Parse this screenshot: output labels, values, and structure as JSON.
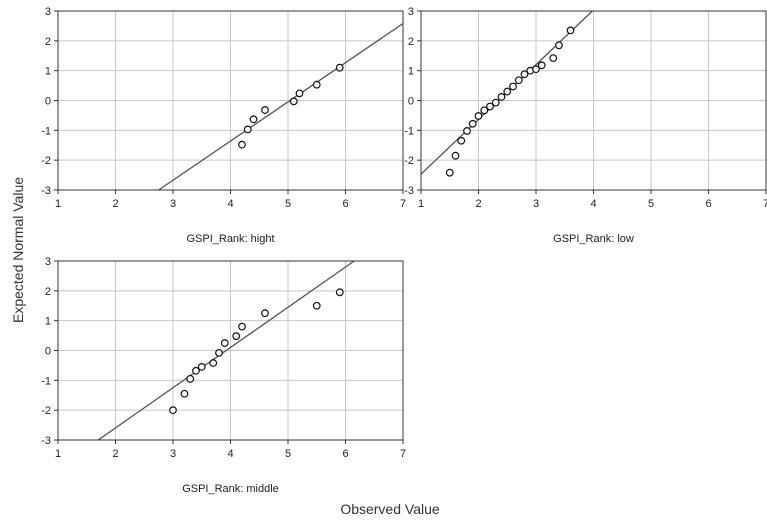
{
  "chart_data": {
    "type": "scatter",
    "ylabel": "Expected Normal Value",
    "xlabel": "Observed Value",
    "xlim": [
      1,
      7
    ],
    "ylim": [
      -3,
      3
    ],
    "xticks": [
      1,
      2,
      3,
      4,
      5,
      6,
      7
    ],
    "yticks": [
      3,
      2,
      1,
      0,
      -1,
      -2,
      -3
    ],
    "grid": true,
    "panels": [
      {
        "label": "GSPI_Rank: hight",
        "points": [
          {
            "x": 4.2,
            "y": -1.48
          },
          {
            "x": 4.3,
            "y": -0.97
          },
          {
            "x": 4.4,
            "y": -0.63
          },
          {
            "x": 4.6,
            "y": -0.32
          },
          {
            "x": 5.1,
            "y": -0.03
          },
          {
            "x": 5.2,
            "y": 0.24
          },
          {
            "x": 5.5,
            "y": 0.53
          },
          {
            "x": 5.9,
            "y": 1.1
          }
        ],
        "fit_line": [
          {
            "x": 2.75,
            "y": -3
          },
          {
            "x": 7,
            "y": 2.58
          }
        ]
      },
      {
        "label": "GSPI_Rank: low",
        "points": [
          {
            "x": 1.5,
            "y": -2.42
          },
          {
            "x": 1.6,
            "y": -1.85
          },
          {
            "x": 1.7,
            "y": -1.35
          },
          {
            "x": 1.8,
            "y": -1.02
          },
          {
            "x": 1.9,
            "y": -0.78
          },
          {
            "x": 2.0,
            "y": -0.52
          },
          {
            "x": 2.1,
            "y": -0.33
          },
          {
            "x": 2.2,
            "y": -0.2
          },
          {
            "x": 2.3,
            "y": -0.07
          },
          {
            "x": 2.4,
            "y": 0.12
          },
          {
            "x": 2.5,
            "y": 0.3
          },
          {
            "x": 2.6,
            "y": 0.47
          },
          {
            "x": 2.7,
            "y": 0.68
          },
          {
            "x": 2.8,
            "y": 0.88
          },
          {
            "x": 2.9,
            "y": 1.0
          },
          {
            "x": 3.0,
            "y": 1.05
          },
          {
            "x": 3.1,
            "y": 1.18
          },
          {
            "x": 3.3,
            "y": 1.42
          },
          {
            "x": 3.4,
            "y": 1.85
          },
          {
            "x": 3.6,
            "y": 2.35
          }
        ],
        "fit_line": [
          {
            "x": 1,
            "y": -2.47
          },
          {
            "x": 3.98,
            "y": 3
          }
        ]
      },
      {
        "label": "GSPI_Rank: middle",
        "points": [
          {
            "x": 3.0,
            "y": -2.0
          },
          {
            "x": 3.2,
            "y": -1.45
          },
          {
            "x": 3.3,
            "y": -0.95
          },
          {
            "x": 3.4,
            "y": -0.68
          },
          {
            "x": 3.5,
            "y": -0.55
          },
          {
            "x": 3.7,
            "y": -0.42
          },
          {
            "x": 3.8,
            "y": -0.08
          },
          {
            "x": 3.9,
            "y": 0.25
          },
          {
            "x": 4.1,
            "y": 0.48
          },
          {
            "x": 4.2,
            "y": 0.8
          },
          {
            "x": 4.6,
            "y": 1.25
          },
          {
            "x": 5.5,
            "y": 1.5
          },
          {
            "x": 5.9,
            "y": 1.95
          }
        ],
        "fit_line": [
          {
            "x": 1.7,
            "y": -3
          },
          {
            "x": 6.15,
            "y": 3
          }
        ]
      }
    ]
  }
}
